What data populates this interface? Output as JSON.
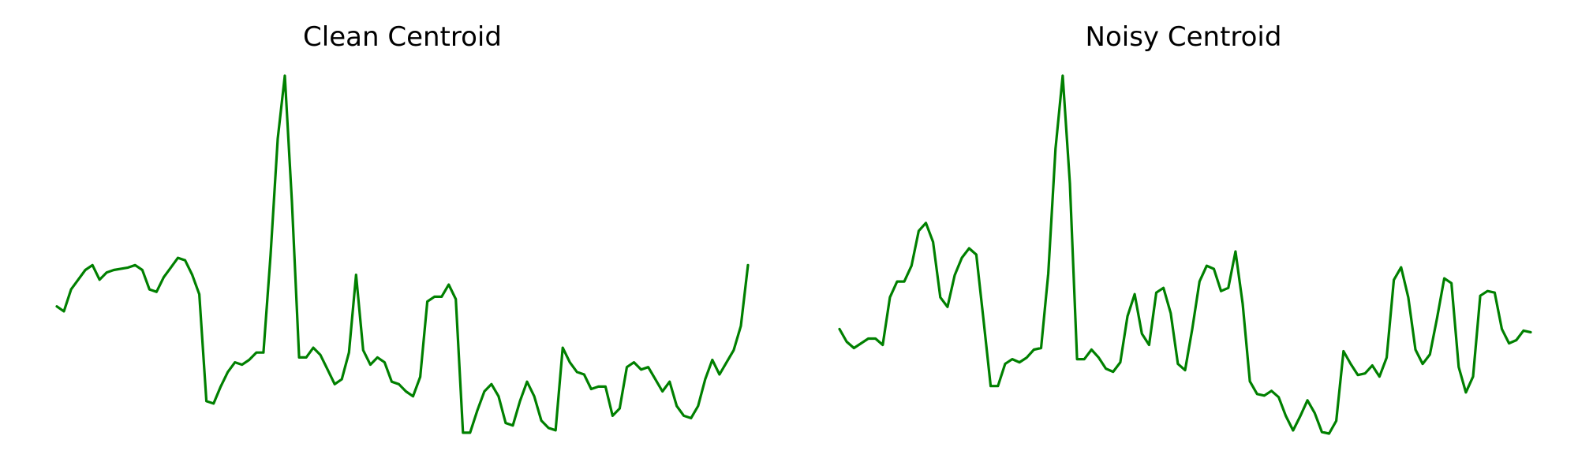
{
  "chart_data": [
    {
      "type": "line",
      "title": "Clean Centroid",
      "xlabel": "",
      "ylabel": "",
      "axes_visible": false,
      "grid": false,
      "legend": "none",
      "color": "#008000",
      "series": [
        {
          "values": [
            0.23,
            0.21,
            0.3,
            0.34,
            0.38,
            0.4,
            0.34,
            0.37,
            0.38,
            0.385,
            0.39,
            0.4,
            0.38,
            0.3,
            0.29,
            0.35,
            0.39,
            0.43,
            0.42,
            0.36,
            0.28,
            -0.16,
            -0.17,
            -0.1,
            -0.04,
            0.0,
            -0.01,
            0.01,
            0.04,
            0.04,
            0.44,
            0.92,
            1.18,
            0.66,
            0.02,
            0.02,
            0.06,
            0.03,
            -0.03,
            -0.09,
            -0.07,
            0.04,
            0.36,
            0.05,
            -0.01,
            0.02,
            0.0,
            -0.08,
            -0.09,
            -0.12,
            -0.14,
            -0.06,
            0.25,
            0.27,
            0.27,
            0.32,
            0.26,
            -0.29,
            -0.29,
            -0.2,
            -0.12,
            -0.09,
            -0.14,
            -0.25,
            -0.26,
            -0.16,
            -0.08,
            -0.14,
            -0.24,
            -0.27,
            -0.28,
            0.06,
            0.0,
            -0.04,
            -0.05,
            -0.11,
            -0.1,
            -0.1,
            -0.22,
            -0.19,
            -0.02,
            0.0,
            -0.03,
            -0.02,
            -0.07,
            -0.12,
            -0.08,
            -0.18,
            -0.22,
            -0.23,
            -0.18,
            -0.07,
            0.01,
            -0.05,
            0.0,
            0.05,
            0.15,
            0.4
          ]
        }
      ]
    },
    {
      "type": "line",
      "title": "Noisy Centroid",
      "xlabel": "",
      "ylabel": "",
      "axes_visible": false,
      "grid": false,
      "legend": "none",
      "color": "#008000",
      "series": [
        {
          "values": [
            0.18,
            0.1,
            0.06,
            0.09,
            0.12,
            0.12,
            0.08,
            0.38,
            0.48,
            0.48,
            0.58,
            0.8,
            0.85,
            0.73,
            0.38,
            0.32,
            0.52,
            0.63,
            0.69,
            0.65,
            0.24,
            -0.18,
            -0.18,
            -0.04,
            -0.01,
            -0.03,
            0.0,
            0.05,
            0.06,
            0.53,
            1.32,
            1.78,
            1.1,
            -0.01,
            -0.01,
            0.05,
            0.0,
            -0.07,
            -0.09,
            -0.03,
            0.26,
            0.4,
            0.15,
            0.08,
            0.41,
            0.44,
            0.28,
            -0.04,
            -0.08,
            0.18,
            0.48,
            0.58,
            0.56,
            0.42,
            0.44,
            0.67,
            0.34,
            -0.15,
            -0.23,
            -0.24,
            -0.21,
            -0.25,
            -0.37,
            -0.46,
            -0.37,
            -0.27,
            -0.35,
            -0.47,
            -0.48,
            -0.4,
            0.04,
            -0.04,
            -0.11,
            -0.1,
            -0.05,
            -0.12,
            0.0,
            0.49,
            0.57,
            0.38,
            0.05,
            -0.04,
            0.02,
            0.25,
            0.5,
            0.47,
            -0.06,
            -0.22,
            -0.12,
            0.39,
            0.42,
            0.41,
            0.18,
            0.09,
            0.11,
            0.17,
            0.16
          ]
        }
      ]
    }
  ]
}
